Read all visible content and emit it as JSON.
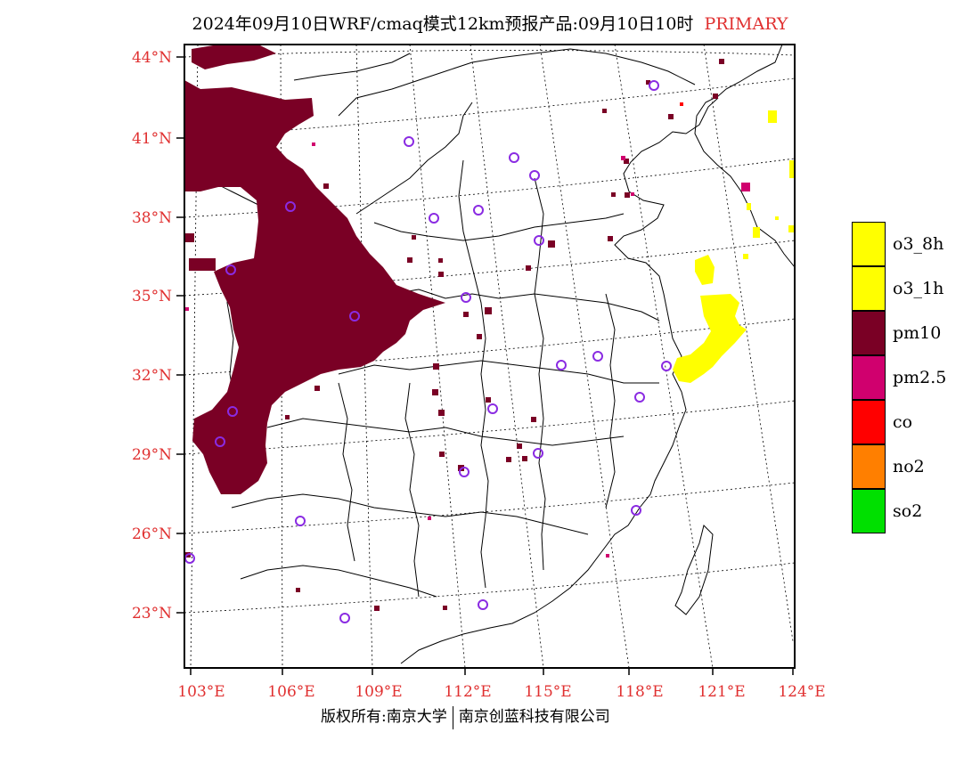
{
  "header": {
    "title": "2024年09月10日WRF/cmaq模式12km预报产品:09月10日10时",
    "tag": "PRIMARY"
  },
  "map": {
    "lat_labels": [
      "44°N",
      "41°N",
      "38°N",
      "35°N",
      "32°N",
      "29°N",
      "26°N",
      "23°N"
    ],
    "lon_labels": [
      "103°E",
      "106°E",
      "109°E",
      "112°E",
      "115°E",
      "118°E",
      "121°E",
      "124°E"
    ],
    "label_color": "#e03030"
  },
  "legend": [
    {
      "label": "o3_8h",
      "color": "#ffff00"
    },
    {
      "label": "o3_1h",
      "color": "#ffff00"
    },
    {
      "label": "pm10",
      "color": "#7a0025"
    },
    {
      "label": "pm2.5",
      "color": "#d0006e"
    },
    {
      "label": "co",
      "color": "#ff0000"
    },
    {
      "label": "no2",
      "color": "#ff7f00"
    },
    {
      "label": "so2",
      "color": "#00e000"
    }
  ],
  "footer": {
    "left": "版权所有:南京大学",
    "right": "南京创蓝科技有限公司"
  }
}
